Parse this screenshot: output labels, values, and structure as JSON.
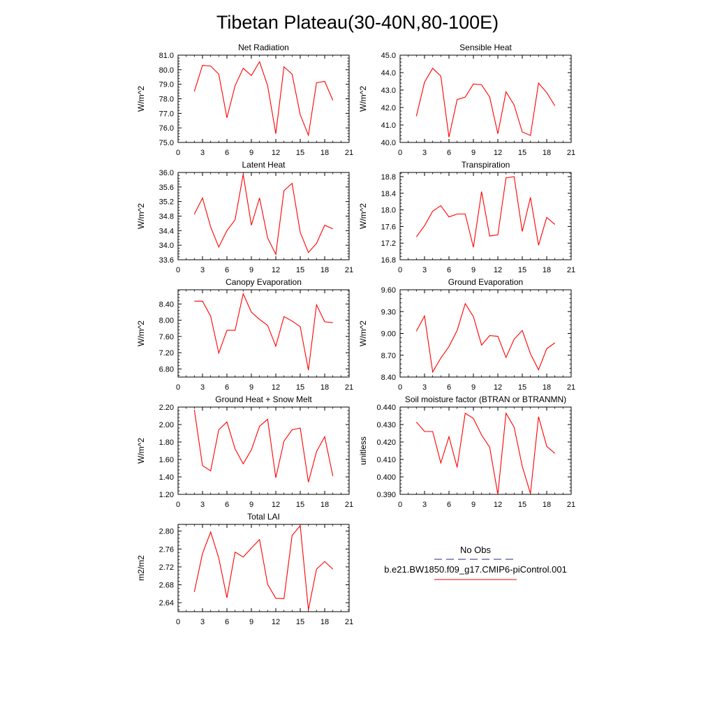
{
  "figure": {
    "title": "Tibetan Plateau(30-40N,80-100E)"
  },
  "legend": {
    "entries": [
      {
        "label": "No Obs",
        "color": "#2a2a8a",
        "dash": "dashed"
      },
      {
        "label": "b.e21.BW1850.f09_g17.CMIP6-piControl.001",
        "color": "#ff0000",
        "dash": "solid"
      }
    ]
  },
  "chart_data": [
    {
      "type": "line",
      "title": "Net Radiation",
      "ylabel": "W/m^2",
      "xlabel": "",
      "xlim": [
        0,
        21
      ],
      "xticks": [
        0,
        3,
        6,
        9,
        12,
        15,
        18,
        21
      ],
      "ylim": [
        75.0,
        81.0
      ],
      "yticks": [
        "75.0",
        "76.0",
        "77.0",
        "78.0",
        "79.0",
        "80.0",
        "81.0"
      ],
      "series": [
        {
          "color": "#ff0000",
          "x": [
            2,
            3,
            4,
            5,
            6,
            7,
            8,
            9,
            10,
            11,
            12,
            13,
            14,
            15,
            16,
            17,
            18,
            19
          ],
          "y": [
            78.5,
            80.3,
            80.25,
            79.7,
            76.7,
            78.9,
            80.1,
            79.6,
            80.55,
            78.9,
            75.6,
            80.2,
            79.7,
            76.9,
            75.5,
            79.1,
            79.2,
            77.9
          ]
        }
      ]
    },
    {
      "type": "line",
      "title": "Sensible Heat",
      "ylabel": "W/m^2",
      "xlabel": "",
      "xlim": [
        0,
        21
      ],
      "xticks": [
        0,
        3,
        6,
        9,
        12,
        15,
        18,
        21
      ],
      "ylim": [
        40.0,
        45.0
      ],
      "yticks": [
        "40.0",
        "41.0",
        "42.0",
        "43.0",
        "44.0",
        "45.0"
      ],
      "series": [
        {
          "color": "#ff0000",
          "x": [
            2,
            3,
            4,
            5,
            6,
            7,
            8,
            9,
            10,
            11,
            12,
            13,
            14,
            15,
            16,
            17,
            18,
            19
          ],
          "y": [
            41.5,
            43.45,
            44.25,
            43.8,
            40.3,
            42.45,
            42.6,
            43.35,
            43.3,
            42.6,
            40.5,
            42.9,
            42.15,
            40.6,
            40.4,
            43.4,
            42.85,
            42.1
          ]
        }
      ]
    },
    {
      "type": "line",
      "title": "Latent Heat",
      "ylabel": "W/m^2",
      "xlabel": "",
      "xlim": [
        0,
        21
      ],
      "xticks": [
        0,
        3,
        6,
        9,
        12,
        15,
        18,
        21
      ],
      "ylim": [
        33.6,
        36.0
      ],
      "yticks": [
        "33.6",
        "34.0",
        "34.4",
        "34.8",
        "35.2",
        "35.6",
        "36.0"
      ],
      "series": [
        {
          "color": "#ff0000",
          "x": [
            2,
            3,
            4,
            5,
            6,
            7,
            8,
            9,
            10,
            11,
            12,
            13,
            14,
            15,
            16,
            17,
            18,
            19
          ],
          "y": [
            34.85,
            35.3,
            34.5,
            33.95,
            34.4,
            34.7,
            35.95,
            34.55,
            35.3,
            34.2,
            33.75,
            35.5,
            35.7,
            34.35,
            33.8,
            34.05,
            34.55,
            34.45
          ]
        }
      ]
    },
    {
      "type": "line",
      "title": "Transpiration",
      "ylabel": "W/m^2",
      "xlabel": "",
      "xlim": [
        0,
        21
      ],
      "xticks": [
        0,
        3,
        6,
        9,
        12,
        15,
        18,
        21
      ],
      "ylim": [
        16.8,
        18.9
      ],
      "yticks": [
        "16.8",
        "17.2",
        "17.6",
        "18.0",
        "18.4",
        "18.8"
      ],
      "series": [
        {
          "color": "#ff0000",
          "x": [
            2,
            3,
            4,
            5,
            6,
            7,
            8,
            9,
            10,
            11,
            12,
            13,
            14,
            15,
            16,
            17,
            18,
            19
          ],
          "y": [
            17.35,
            17.62,
            17.97,
            18.1,
            17.83,
            17.9,
            17.9,
            17.1,
            18.44,
            17.37,
            17.4,
            18.77,
            18.8,
            17.48,
            18.3,
            17.15,
            17.82,
            17.65
          ]
        }
      ]
    },
    {
      "type": "line",
      "title": "Canopy Evaporation",
      "ylabel": "W/m^2",
      "xlabel": "",
      "xlim": [
        0,
        21
      ],
      "xticks": [
        0,
        3,
        6,
        9,
        12,
        15,
        18,
        21
      ],
      "ylim": [
        6.6,
        8.75
      ],
      "yticks": [
        "6.80",
        "7.20",
        "7.60",
        "8.00",
        "8.40"
      ],
      "series": [
        {
          "color": "#ff0000",
          "x": [
            2,
            3,
            4,
            5,
            6,
            7,
            8,
            9,
            10,
            11,
            12,
            13,
            14,
            15,
            16,
            17,
            18,
            19
          ],
          "y": [
            8.47,
            8.47,
            8.1,
            7.19,
            7.75,
            7.75,
            8.65,
            8.2,
            8.02,
            7.87,
            7.36,
            8.09,
            7.98,
            7.84,
            6.77,
            8.38,
            7.96,
            7.94
          ]
        }
      ]
    },
    {
      "type": "line",
      "title": "Ground Evaporation",
      "ylabel": "W/m^2",
      "xlabel": "",
      "xlim": [
        0,
        21
      ],
      "xticks": [
        0,
        3,
        6,
        9,
        12,
        15,
        18,
        21
      ],
      "ylim": [
        8.4,
        9.6
      ],
      "yticks": [
        "8.40",
        "8.70",
        "9.00",
        "9.30",
        "9.60"
      ],
      "series": [
        {
          "color": "#ff0000",
          "x": [
            2,
            3,
            4,
            5,
            6,
            7,
            8,
            9,
            10,
            11,
            12,
            13,
            14,
            15,
            16,
            17,
            18,
            19
          ],
          "y": [
            9.03,
            9.24,
            8.47,
            8.66,
            8.82,
            9.04,
            9.41,
            9.23,
            8.84,
            8.97,
            8.96,
            8.67,
            8.92,
            9.04,
            8.72,
            8.5,
            8.79,
            8.87
          ]
        }
      ]
    },
    {
      "type": "line",
      "title": "Ground Heat + Snow Melt",
      "ylabel": "W/m^2",
      "xlabel": "",
      "xlim": [
        0,
        21
      ],
      "xticks": [
        0,
        3,
        6,
        9,
        12,
        15,
        18,
        21
      ],
      "ylim": [
        1.2,
        2.2
      ],
      "yticks": [
        "1.20",
        "1.40",
        "1.60",
        "1.80",
        "2.00",
        "2.20"
      ],
      "series": [
        {
          "color": "#ff0000",
          "x": [
            2,
            3,
            4,
            5,
            6,
            7,
            8,
            9,
            10,
            11,
            12,
            13,
            14,
            15,
            16,
            17,
            18,
            19
          ],
          "y": [
            2.17,
            1.53,
            1.47,
            1.94,
            2.03,
            1.72,
            1.55,
            1.71,
            1.98,
            2.06,
            1.39,
            1.81,
            1.94,
            1.96,
            1.34,
            1.69,
            1.86,
            1.41
          ]
        }
      ]
    },
    {
      "type": "line",
      "title": "Soil moisture factor (BTRAN or BTRANMN)",
      "ylabel": "unitless",
      "xlabel": "",
      "xlim": [
        0,
        21
      ],
      "xticks": [
        0,
        3,
        6,
        9,
        12,
        15,
        18,
        21
      ],
      "ylim": [
        0.39,
        0.44
      ],
      "yticks": [
        "0.390",
        "0.400",
        "0.410",
        "0.420",
        "0.430",
        "0.440"
      ],
      "series": [
        {
          "color": "#ff0000",
          "x": [
            2,
            3,
            4,
            5,
            6,
            7,
            8,
            9,
            10,
            11,
            12,
            13,
            14,
            15,
            16,
            17,
            18,
            19
          ],
          "y": [
            0.4315,
            0.426,
            0.426,
            0.408,
            0.423,
            0.4055,
            0.4365,
            0.4335,
            0.424,
            0.417,
            0.39,
            0.4365,
            0.4285,
            0.406,
            0.3905,
            0.4345,
            0.4175,
            0.4135
          ]
        }
      ]
    },
    {
      "type": "line",
      "title": "Total LAI",
      "ylabel": "m2/m2",
      "xlabel": "",
      "xlim": [
        0,
        21
      ],
      "xticks": [
        0,
        3,
        6,
        9,
        12,
        15,
        18,
        21
      ],
      "ylim": [
        2.62,
        2.815
      ],
      "yticks": [
        "2.64",
        "2.68",
        "2.72",
        "2.76",
        "2.80"
      ],
      "series": [
        {
          "color": "#ff0000",
          "x": [
            2,
            3,
            4,
            5,
            6,
            7,
            8,
            9,
            10,
            11,
            12,
            13,
            14,
            15,
            16,
            17,
            18,
            19
          ],
          "y": [
            2.664,
            2.75,
            2.798,
            2.74,
            2.651,
            2.753,
            2.742,
            2.762,
            2.781,
            2.681,
            2.65,
            2.649,
            2.79,
            2.812,
            2.624,
            2.715,
            2.732,
            2.715
          ]
        }
      ]
    }
  ]
}
